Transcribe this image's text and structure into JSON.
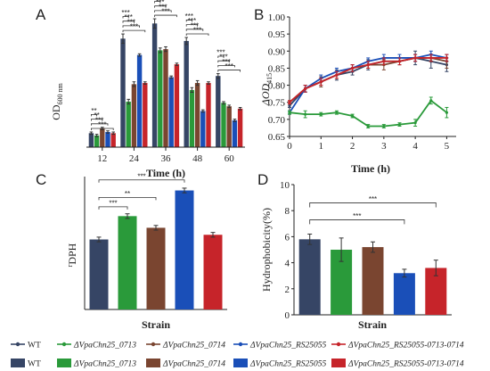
{
  "colors": {
    "wt": "#364565",
    "d0713": "#2a9a3a",
    "d0714": "#7a4530",
    "rs25055": "#1a4fb8",
    "combo": "#c6242a"
  },
  "legend": {
    "line_items": [
      "WT",
      "ΔVpaChn25_0713",
      "ΔVpaChn25_0714",
      "ΔVpaChn25_RS25055",
      "ΔVpaChn25_RS25055-0713-0714"
    ],
    "bar_items": [
      "WT",
      "ΔVpaChn25_0713",
      "ΔVpaChn25_0714",
      "ΔVpaChn25_RS25055",
      "ΔVpaChn25_RS25055-0713-0714"
    ]
  },
  "chart_data": [
    {
      "panel": "A",
      "type": "bar",
      "xlabel": "Time (h)",
      "ylabel": "OD",
      "ylabel_sub": "600 nm",
      "categories": [
        "12",
        "24",
        "36",
        "48",
        "60"
      ],
      "ylim": [
        0,
        1.2
      ],
      "series": [
        {
          "values": [
            0.12,
            0.93,
            1.06,
            0.91,
            0.61
          ],
          "errors": [
            0.01,
            0.04,
            0.04,
            0.03,
            0.02
          ]
        },
        {
          "values": [
            0.1,
            0.39,
            0.83,
            0.49,
            0.38
          ],
          "errors": [
            0.01,
            0.02,
            0.02,
            0.02,
            0.01
          ]
        },
        {
          "values": [
            0.16,
            0.54,
            0.84,
            0.55,
            0.35
          ],
          "errors": [
            0.01,
            0.02,
            0.02,
            0.02,
            0.01
          ]
        },
        {
          "values": [
            0.13,
            0.79,
            0.6,
            0.31,
            0.23
          ],
          "errors": [
            0.01,
            0.01,
            0.01,
            0.01,
            0.01
          ]
        },
        {
          "values": [
            0.12,
            0.55,
            0.71,
            0.55,
            0.33
          ],
          "errors": [
            0.01,
            0.01,
            0.01,
            0.01,
            0.01
          ]
        }
      ],
      "annotations": [
        "**",
        "**",
        "***",
        "***",
        "***",
        "***",
        "***",
        "***",
        "***",
        "***",
        "***",
        "***",
        "***",
        "***",
        "***",
        "***",
        "***",
        "***",
        "***",
        "***"
      ]
    },
    {
      "panel": "B",
      "type": "line",
      "xlabel": "Time (h)",
      "ylabel": "ΔOD",
      "ylabel_sub": "415",
      "x": [
        0,
        0.5,
        1,
        1.5,
        2,
        2.5,
        3,
        3.5,
        4,
        4.5,
        5
      ],
      "xlim": [
        0,
        5.3
      ],
      "ylim": [
        0.65,
        1.0
      ],
      "xticks": [
        "0",
        "1",
        "2",
        "3",
        "4",
        "5"
      ],
      "yticks": [
        "0.65",
        "0.70",
        "0.75",
        "0.80",
        "0.85",
        "0.90",
        "0.95",
        "1.00"
      ],
      "series": [
        {
          "values": [
            0.74,
            0.79,
            0.81,
            0.83,
            0.84,
            0.86,
            0.87,
            0.87,
            0.88,
            0.87,
            0.86
          ],
          "errors": [
            0.005,
            0.01,
            0.01,
            0.015,
            0.01,
            0.015,
            0.01,
            0.01,
            0.02,
            0.02,
            0.02
          ]
        },
        {
          "values": [
            0.72,
            0.715,
            0.715,
            0.72,
            0.71,
            0.68,
            0.68,
            0.685,
            0.69,
            0.755,
            0.72
          ],
          "errors": [
            0.005,
            0.01,
            0.005,
            0.005,
            0.005,
            0.005,
            0.005,
            0.005,
            0.01,
            0.01,
            0.015
          ]
        },
        {
          "values": [
            0.75,
            0.79,
            0.81,
            0.83,
            0.85,
            0.86,
            0.86,
            0.87,
            0.88,
            0.88,
            0.87
          ],
          "errors": [
            0.005,
            0.01,
            0.015,
            0.01,
            0.01,
            0.01,
            0.015,
            0.01,
            0.01,
            0.01,
            0.02
          ]
        },
        {
          "values": [
            0.72,
            0.79,
            0.82,
            0.84,
            0.85,
            0.87,
            0.88,
            0.88,
            0.88,
            0.89,
            0.88
          ],
          "errors": [
            0.005,
            0.01,
            0.01,
            0.01,
            0.01,
            0.01,
            0.01,
            0.01,
            0.01,
            0.01,
            0.01
          ]
        },
        {
          "values": [
            0.75,
            0.79,
            0.81,
            0.83,
            0.85,
            0.86,
            0.87,
            0.87,
            0.88,
            0.88,
            0.88
          ],
          "errors": [
            0.005,
            0.01,
            0.01,
            0.01,
            0.01,
            0.01,
            0.01,
            0.01,
            0.01,
            0.01,
            0.01
          ]
        }
      ]
    },
    {
      "panel": "C",
      "type": "bar",
      "xlabel": "Strain",
      "ylabel": "DPH",
      "ylabel_sup": "r",
      "ylim": [
        0,
        0.6
      ],
      "values": [
        0.3,
        0.4,
        0.35,
        0.51,
        0.32
      ],
      "errors": [
        0.01,
        0.01,
        0.01,
        0.01,
        0.01
      ],
      "annotations": [
        "***",
        "**",
        "***"
      ]
    },
    {
      "panel": "D",
      "type": "bar",
      "xlabel": "Strain",
      "ylabel": "Hydrophobicity(%)",
      "ylim": [
        0,
        10
      ],
      "yticks": [
        "0",
        "2",
        "4",
        "6",
        "8",
        "10"
      ],
      "values": [
        5.8,
        5.0,
        5.2,
        3.2,
        3.6
      ],
      "errors": [
        0.4,
        0.9,
        0.4,
        0.3,
        0.6
      ],
      "annotations": [
        "***",
        "***"
      ]
    }
  ]
}
